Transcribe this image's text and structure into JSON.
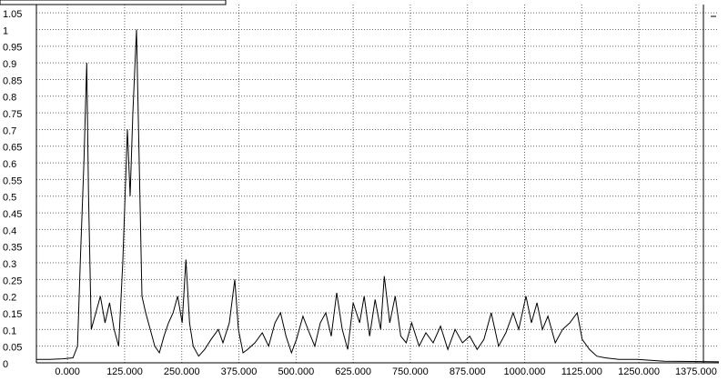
{
  "chart_data": {
    "type": "line",
    "color": "#000000",
    "grid": true,
    "xlim": [
      -68,
      1425
    ],
    "ylim": [
      0,
      1.075
    ],
    "xticks": [
      {
        "value": 0,
        "label": "0.000"
      },
      {
        "value": 125,
        "label": "125.000"
      },
      {
        "value": 250,
        "label": "250.000"
      },
      {
        "value": 375,
        "label": "375.000"
      },
      {
        "value": 500,
        "label": "500.000"
      },
      {
        "value": 625,
        "label": "625.000"
      },
      {
        "value": 750,
        "label": "750.000"
      },
      {
        "value": 875,
        "label": "875.000"
      },
      {
        "value": 1000,
        "label": "1000.000"
      },
      {
        "value": 1125,
        "label": "1125.000"
      },
      {
        "value": 1250,
        "label": "1250.000"
      },
      {
        "value": 1375,
        "label": "1375.000"
      }
    ],
    "yticks": [
      0,
      0.05,
      0.1,
      0.15,
      0.2,
      0.25,
      0.3,
      0.35,
      0.4,
      0.45,
      0.5,
      0.55,
      0.6,
      0.65,
      0.7,
      0.75,
      0.8,
      0.85,
      0.9,
      0.95,
      1,
      1.05
    ],
    "x": [
      -68,
      -40,
      -10,
      12,
      22,
      28,
      36,
      42,
      46,
      52,
      62,
      72,
      82,
      92,
      102,
      112,
      121,
      131,
      137,
      143,
      151,
      157,
      163,
      171,
      181,
      191,
      201,
      211,
      221,
      231,
      241,
      251,
      259,
      267,
      275,
      287,
      300,
      314,
      330,
      340,
      354,
      366,
      374,
      384,
      394,
      410,
      426,
      440,
      454,
      466,
      478,
      490,
      501,
      515,
      529,
      541,
      553,
      565,
      577,
      589,
      601,
      613,
      625,
      639,
      649,
      661,
      673,
      685,
      693,
      705,
      717,
      729,
      741,
      753,
      769,
      784,
      800,
      816,
      832,
      848,
      864,
      880,
      896,
      911,
      927,
      943,
      959,
      975,
      987,
      1003,
      1015,
      1027,
      1039,
      1051,
      1067,
      1083,
      1099,
      1115,
      1126,
      1142,
      1158,
      1176,
      1206,
      1246,
      1306,
      1365,
      1425
    ],
    "values": [
      0.01,
      0.01,
      0.012,
      0.015,
      0.05,
      0.3,
      0.6,
      0.9,
      0.5,
      0.1,
      0.15,
      0.2,
      0.12,
      0.18,
      0.1,
      0.05,
      0.3,
      0.7,
      0.5,
      0.75,
      1.0,
      0.6,
      0.2,
      0.15,
      0.1,
      0.05,
      0.03,
      0.08,
      0.12,
      0.15,
      0.2,
      0.12,
      0.31,
      0.12,
      0.05,
      0.02,
      0.04,
      0.07,
      0.1,
      0.06,
      0.12,
      0.25,
      0.1,
      0.03,
      0.04,
      0.06,
      0.09,
      0.05,
      0.12,
      0.15,
      0.08,
      0.03,
      0.07,
      0.14,
      0.09,
      0.05,
      0.12,
      0.15,
      0.08,
      0.21,
      0.1,
      0.04,
      0.18,
      0.12,
      0.2,
      0.08,
      0.19,
      0.1,
      0.26,
      0.12,
      0.2,
      0.08,
      0.06,
      0.12,
      0.05,
      0.09,
      0.06,
      0.11,
      0.04,
      0.1,
      0.06,
      0.08,
      0.04,
      0.07,
      0.15,
      0.05,
      0.09,
      0.15,
      0.1,
      0.2,
      0.12,
      0.18,
      0.1,
      0.14,
      0.06,
      0.1,
      0.12,
      0.15,
      0.07,
      0.04,
      0.02,
      0.015,
      0.01,
      0.01,
      0.005,
      0.004,
      0.003
    ]
  }
}
